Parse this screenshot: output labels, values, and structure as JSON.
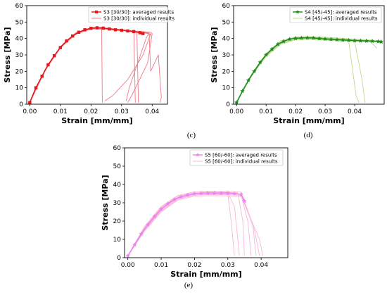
{
  "chart_data": [
    {
      "type": "line",
      "panel": "c",
      "caption": "(c)",
      "xlabel": "Strain [mm/mm]",
      "ylabel": "Stress [MPa]",
      "xlim": [
        -0.001,
        0.045
      ],
      "ylim": [
        0,
        60
      ],
      "xticks": [
        "0.00",
        "0.01",
        "0.02",
        "0.03",
        "0.04"
      ],
      "yticks": [
        "0",
        "10",
        "20",
        "30",
        "40",
        "50",
        "60"
      ],
      "grid": false,
      "legend_position": "top-right",
      "colors": {
        "averaged": "#e8151b",
        "individual": "#ef7a86"
      },
      "series": [
        {
          "name": "S3 [30/30]: averaged results",
          "style": "line-square-markers",
          "x": [
            0.0,
            0.002,
            0.004,
            0.006,
            0.008,
            0.01,
            0.012,
            0.014,
            0.016,
            0.018,
            0.02,
            0.022,
            0.024,
            0.026,
            0.028,
            0.03,
            0.032,
            0.034,
            0.036,
            0.037
          ],
          "y": [
            1,
            10,
            17,
            24,
            29.5,
            34.5,
            38.5,
            41.5,
            43.8,
            45.3,
            46.2,
            46.5,
            46.3,
            45.8,
            45.3,
            45.0,
            44.6,
            44.2,
            43.5,
            43.0
          ]
        },
        {
          "name": "S3 [30/30]: individual results",
          "style": "thin-lines",
          "curves": [
            {
              "x": [
                0.0,
                0.005,
                0.01,
                0.015,
                0.02,
                0.022,
                0.026,
                0.03,
                0.034,
                0.0345
              ],
              "y": [
                1,
                21,
                35,
                43.3,
                46.4,
                46.8,
                46.2,
                45.5,
                44.3,
                1
              ]
            },
            {
              "x": [
                0.0,
                0.005,
                0.01,
                0.015,
                0.02,
                0.023,
                0.03,
                0.035,
                0.0355
              ],
              "y": [
                1,
                21,
                34.5,
                43,
                46.0,
                46.4,
                45.3,
                44.2,
                1
              ]
            },
            {
              "x": [
                0.0,
                0.005,
                0.01,
                0.015,
                0.02,
                0.0235,
                0.0237
              ],
              "y": [
                1,
                21,
                35,
                43.5,
                46.5,
                46.8,
                1
              ]
            },
            {
              "x": [
                0.0,
                0.005,
                0.01,
                0.015,
                0.02,
                0.025,
                0.03,
                0.035,
                0.039,
                0.0395,
                0.042,
                0.043,
                0.0425
              ],
              "y": [
                1,
                20.5,
                34.3,
                42.6,
                45.8,
                45.6,
                45.0,
                44.2,
                43.4,
                20,
                30,
                4,
                1
              ]
            },
            {
              "x": [
                0.0,
                0.005,
                0.01,
                0.015,
                0.02,
                0.025,
                0.03,
                0.036,
                0.038,
                0.0395,
                0.0385,
                0.038,
                0.0325,
                0.0315
              ],
              "y": [
                1,
                21,
                35,
                43,
                46,
                45.7,
                45,
                43.7,
                43.4,
                42.5,
                42,
                40,
                10,
                2
              ]
            },
            {
              "x": [
                0.0,
                0.005,
                0.01,
                0.015,
                0.02,
                0.025,
                0.03,
                0.035,
                0.0385,
                0.0395,
                0.037,
                0.032,
                0.027,
                0.0245
              ],
              "y": [
                1,
                21,
                34.8,
                43,
                46,
                45.8,
                45.2,
                44.3,
                43,
                42.8,
                30,
                15,
                5,
                2
              ]
            },
            {
              "x": [
                0.0,
                0.005,
                0.01,
                0.015,
                0.02,
                0.025,
                0.03,
                0.035,
                0.038,
                0.0395,
                0.04,
                0.0385,
                0.0335,
                0.032
              ],
              "y": [
                1,
                21,
                35,
                43.2,
                46.2,
                46,
                45.3,
                44.5,
                44,
                43.8,
                43,
                25,
                6,
                1
              ]
            }
          ]
        }
      ]
    },
    {
      "type": "line",
      "panel": "d",
      "caption": "(d)",
      "xlabel": "Strain [mm/mm]",
      "ylabel": "Stress [MPa]",
      "xlim": [
        -0.001,
        0.05
      ],
      "ylim": [
        0,
        60
      ],
      "xticks": [
        "0.00",
        "0.01",
        "0.02",
        "0.03",
        "0.04"
      ],
      "yticks": [
        "0",
        "10",
        "20",
        "30",
        "40",
        "50",
        "60"
      ],
      "grid": false,
      "legend_position": "top-right",
      "colors": {
        "averaged": "#1e8a1e",
        "individual": "#b8dc8c"
      },
      "series": [
        {
          "name": "S4 [45/-45]: averaged results",
          "style": "line-star-markers",
          "x": [
            0.0,
            0.002,
            0.004,
            0.006,
            0.008,
            0.01,
            0.012,
            0.014,
            0.016,
            0.018,
            0.02,
            0.022,
            0.024,
            0.026,
            0.028,
            0.03,
            0.032,
            0.034,
            0.036,
            0.038,
            0.04,
            0.042,
            0.044,
            0.046,
            0.048,
            0.049
          ],
          "y": [
            1,
            8,
            14.5,
            20,
            25.5,
            30,
            33.5,
            36.5,
            38.3,
            39.6,
            40.1,
            40.3,
            40.4,
            40.3,
            40.0,
            39.7,
            39.5,
            39.3,
            39.1,
            38.9,
            38.7,
            38.6,
            38.5,
            38.4,
            38.2,
            38.0
          ]
        },
        {
          "name": "S4 [45/-45]: individual results",
          "style": "thin-lines",
          "curves": [
            {
              "x": [
                0.0,
                0.005,
                0.01,
                0.015,
                0.02,
                0.025,
                0.03,
                0.035,
                0.038,
                0.0405,
                0.0415
              ],
              "y": [
                1,
                17.5,
                29.5,
                37,
                39.5,
                39.8,
                39.3,
                38.8,
                38.4,
                5,
                1
              ]
            },
            {
              "x": [
                0.0,
                0.005,
                0.01,
                0.015,
                0.02,
                0.025,
                0.03,
                0.035,
                0.04,
                0.0425,
                0.0435
              ],
              "y": [
                1,
                17,
                29,
                36.5,
                39.2,
                39.5,
                39,
                38.5,
                38.2,
                15,
                1
              ]
            },
            {
              "x": [
                0.0,
                0.005,
                0.01,
                0.015,
                0.02,
                0.025,
                0.03,
                0.035,
                0.04,
                0.045,
                0.0475,
                0.0485
              ],
              "y": [
                1,
                18,
                30.5,
                38,
                40.6,
                40.8,
                40.4,
                39.9,
                39.3,
                38.7,
                38.2,
                37.5
              ]
            },
            {
              "x": [
                0.0,
                0.005,
                0.01,
                0.015,
                0.02,
                0.025,
                0.03,
                0.035,
                0.04,
                0.045,
                0.0465,
                0.0475
              ],
              "y": [
                1,
                17.5,
                30,
                37.5,
                40.2,
                40.4,
                40.0,
                39.4,
                38.9,
                38.4,
                36,
                34
              ]
            },
            {
              "x": [
                0.0,
                0.005,
                0.01,
                0.015,
                0.02,
                0.025,
                0.03,
                0.035,
                0.04,
                0.046,
                0.049
              ],
              "y": [
                1,
                18.2,
                31,
                38.6,
                41,
                41.2,
                40.8,
                40.2,
                39.6,
                39,
                38.6
              ]
            }
          ]
        }
      ]
    },
    {
      "type": "line",
      "panel": "e",
      "caption": "(e)",
      "xlabel": "Strain [mm/mm]",
      "ylabel": "Stress [MPa]",
      "xlim": [
        -0.001,
        0.048
      ],
      "ylim": [
        0,
        60
      ],
      "xticks": [
        "0.00",
        "0.01",
        "0.02",
        "0.03",
        "0.04"
      ],
      "yticks": [
        "0",
        "10",
        "20",
        "30",
        "40",
        "50",
        "60"
      ],
      "grid": false,
      "legend_position": "top-right",
      "colors": {
        "averaged": "#ee82ee",
        "individual": "#f6b8d8"
      },
      "series": [
        {
          "name": "S5 [60/-60]: averaged results",
          "style": "line-star-markers",
          "x": [
            0.0,
            0.002,
            0.004,
            0.006,
            0.008,
            0.01,
            0.012,
            0.014,
            0.016,
            0.018,
            0.02,
            0.022,
            0.024,
            0.026,
            0.028,
            0.03,
            0.032,
            0.034,
            0.035
          ],
          "y": [
            1,
            7,
            13,
            18,
            22.5,
            26.5,
            29.5,
            31.8,
            33.3,
            34.3,
            34.9,
            35.2,
            35.3,
            35.3,
            35.3,
            35.3,
            35.0,
            34.6,
            31
          ]
        },
        {
          "name": "S5 [60/-60]: individual results",
          "style": "thin-lines",
          "curves": [
            {
              "x": [
                0.0,
                0.005,
                0.01,
                0.015,
                0.02,
                0.025,
                0.03,
                0.031,
                0.032
              ],
              "y": [
                1,
                15.5,
                26,
                32.5,
                34.3,
                34.6,
                34.5,
                20,
                1
              ]
            },
            {
              "x": [
                0.0,
                0.005,
                0.01,
                0.015,
                0.02,
                0.025,
                0.03,
                0.032,
                0.0335
              ],
              "y": [
                1,
                16,
                27,
                33,
                35,
                35.3,
                35.2,
                28,
                1
              ]
            },
            {
              "x": [
                0.0,
                0.005,
                0.01,
                0.015,
                0.02,
                0.025,
                0.03,
                0.033,
                0.0345,
                0.035
              ],
              "y": [
                1,
                16.5,
                27.5,
                33.5,
                35.6,
                35.9,
                35.8,
                35.4,
                20,
                1
              ]
            },
            {
              "x": [
                0.0,
                0.005,
                0.01,
                0.015,
                0.02,
                0.025,
                0.03,
                0.034,
                0.036,
                0.037
              ],
              "y": [
                1,
                15,
                25.5,
                32,
                34.2,
                34.5,
                34.4,
                34,
                20,
                1
              ]
            },
            {
              "x": [
                0.0,
                0.005,
                0.01,
                0.015,
                0.02,
                0.025,
                0.03,
                0.034,
                0.0375,
                0.0385
              ],
              "y": [
                1,
                17,
                28,
                34,
                36,
                36.3,
                36.2,
                35.8,
                18,
                1
              ]
            },
            {
              "x": [
                0.0,
                0.005,
                0.01,
                0.015,
                0.02,
                0.025,
                0.03,
                0.034,
                0.038,
                0.0395
              ],
              "y": [
                1,
                15.8,
                26.5,
                32.8,
                34.8,
                35.1,
                35,
                34.6,
                15,
                1
              ]
            },
            {
              "x": [
                0.0,
                0.005,
                0.01,
                0.015,
                0.02,
                0.025,
                0.03,
                0.034,
                0.0395,
                0.0405
              ],
              "y": [
                1,
                14.5,
                25,
                31.5,
                33.6,
                33.9,
                33.8,
                33.4,
                10,
                1
              ]
            }
          ]
        }
      ]
    }
  ]
}
